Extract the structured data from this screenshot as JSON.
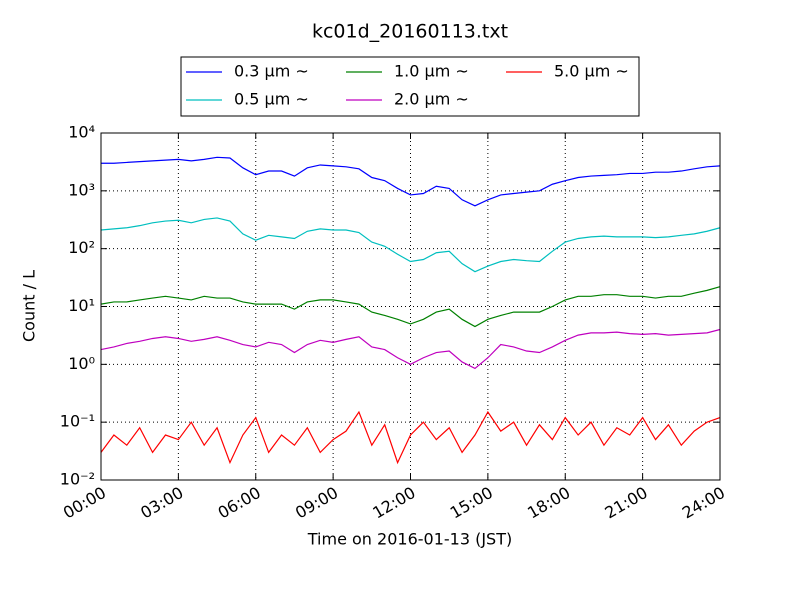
{
  "chart_data": {
    "type": "line",
    "title": "kc01d_20160113.txt",
    "x_label": "Time on 2016-01-13 (JST)",
    "y_label": "Count / L",
    "log_y": true,
    "grid": true,
    "legend_position": "top",
    "x": [
      0,
      0.5,
      1,
      1.5,
      2,
      2.5,
      3,
      3.5,
      4,
      4.5,
      5,
      5.5,
      6,
      6.5,
      7,
      7.5,
      8,
      8.5,
      9,
      9.5,
      10,
      10.5,
      11,
      11.5,
      12,
      12.5,
      13,
      13.5,
      14,
      14.5,
      15,
      15.5,
      16,
      16.5,
      17,
      17.5,
      18,
      18.5,
      19,
      19.5,
      20,
      20.5,
      21,
      21.5,
      22,
      22.5,
      23,
      23.5,
      24
    ],
    "xlim": [
      0,
      24
    ],
    "xticks": [
      {
        "value": 0,
        "label": "00:00"
      },
      {
        "value": 3,
        "label": "03:00"
      },
      {
        "value": 6,
        "label": "06:00"
      },
      {
        "value": 9,
        "label": "09:00"
      },
      {
        "value": 12,
        "label": "12:00"
      },
      {
        "value": 15,
        "label": "15:00"
      },
      {
        "value": 18,
        "label": "18:00"
      },
      {
        "value": 21,
        "label": "21:00"
      },
      {
        "value": 24,
        "label": "24:00"
      }
    ],
    "ylim": [
      0.01,
      10000
    ],
    "yticks": [
      {
        "value": 0.01,
        "label": "10⁻²"
      },
      {
        "value": 0.1,
        "label": "10⁻¹"
      },
      {
        "value": 1,
        "label": "10⁰"
      },
      {
        "value": 10,
        "label": "10¹"
      },
      {
        "value": 100,
        "label": "10²"
      },
      {
        "value": 1000,
        "label": "10³"
      },
      {
        "value": 10000,
        "label": "10⁴"
      }
    ],
    "series": [
      {
        "name": "0.3 μm ~",
        "color": "#0000ff",
        "values": [
          3000,
          3000,
          3100,
          3200,
          3300,
          3400,
          3500,
          3300,
          3500,
          3800,
          3700,
          2500,
          1900,
          2200,
          2200,
          1800,
          2500,
          2800,
          2700,
          2600,
          2400,
          1700,
          1500,
          1100,
          850,
          900,
          1200,
          1100,
          700,
          550,
          700,
          850,
          900,
          950,
          1000,
          1300,
          1500,
          1700,
          1800,
          1850,
          1900,
          2000,
          2000,
          2100,
          2100,
          2200,
          2400,
          2600,
          2700
        ]
      },
      {
        "name": "0.5 μm ~",
        "color": "#00bfbf",
        "values": [
          210,
          220,
          230,
          250,
          280,
          300,
          310,
          280,
          320,
          340,
          300,
          180,
          140,
          170,
          160,
          150,
          200,
          220,
          210,
          210,
          190,
          130,
          110,
          80,
          60,
          65,
          85,
          90,
          55,
          40,
          50,
          60,
          65,
          62,
          60,
          90,
          130,
          150,
          160,
          165,
          160,
          160,
          160,
          155,
          160,
          170,
          180,
          200,
          230
        ]
      },
      {
        "name": "1.0 μm ~",
        "color": "#008000",
        "values": [
          11,
          12,
          12,
          13,
          14,
          15,
          14,
          13,
          15,
          14,
          14,
          12,
          11,
          11,
          11,
          9,
          12,
          13,
          13,
          12,
          11,
          8,
          7,
          6,
          5,
          6,
          8,
          9,
          6,
          4.5,
          6,
          7,
          8,
          8,
          8,
          10,
          13,
          15,
          15,
          16,
          16,
          15,
          15,
          14,
          15,
          15,
          17,
          19,
          22
        ]
      },
      {
        "name": "2.0 μm ~",
        "color": "#bf00bf",
        "values": [
          1.8,
          2,
          2.3,
          2.5,
          2.8,
          3,
          2.8,
          2.5,
          2.7,
          3,
          2.6,
          2.2,
          2,
          2.4,
          2.2,
          1.6,
          2.2,
          2.6,
          2.4,
          2.7,
          3,
          2,
          1.8,
          1.3,
          1,
          1.3,
          1.6,
          1.7,
          1.1,
          0.85,
          1.3,
          2.2,
          2,
          1.7,
          1.6,
          2,
          2.6,
          3.2,
          3.5,
          3.5,
          3.6,
          3.4,
          3.3,
          3.4,
          3.2,
          3.3,
          3.4,
          3.5,
          4
        ]
      },
      {
        "name": "5.0 μm ~",
        "color": "#ff0000",
        "values": [
          0.03,
          0.06,
          0.04,
          0.08,
          0.03,
          0.06,
          0.05,
          0.1,
          0.04,
          0.08,
          0.02,
          0.06,
          0.12,
          0.03,
          0.06,
          0.04,
          0.08,
          0.03,
          0.05,
          0.07,
          0.15,
          0.04,
          0.09,
          0.02,
          0.06,
          0.1,
          0.05,
          0.08,
          0.03,
          0.06,
          0.15,
          0.07,
          0.1,
          0.04,
          0.09,
          0.05,
          0.12,
          0.06,
          0.1,
          0.04,
          0.08,
          0.06,
          0.12,
          0.05,
          0.09,
          0.04,
          0.07,
          0.1,
          0.12
        ]
      }
    ]
  }
}
